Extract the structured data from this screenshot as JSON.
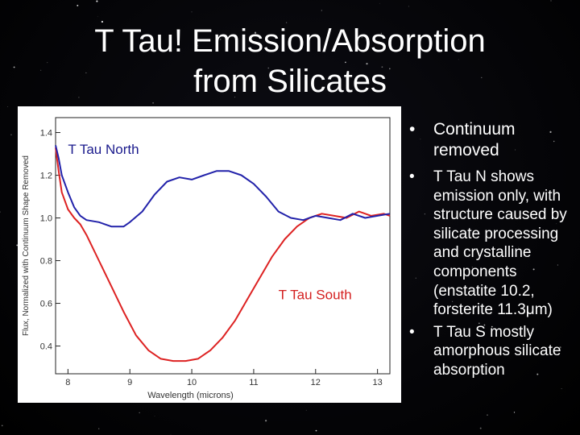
{
  "slide": {
    "title_line1": "T Tau!  Emission/Absorption",
    "title_line2": "from Silicates"
  },
  "bullets": [
    {
      "text": "Continuum removed"
    },
    {
      "text": "T Tau N shows emission only, with structure caused by silicate processing and crystalline components (enstatite 10.2, forsterite 11.3μm)"
    },
    {
      "text": "T Tau S mostly amorphous silicate absorption"
    }
  ],
  "bullet_marker": "•",
  "chart_data": {
    "type": "line",
    "title": "",
    "xlabel": "Wavelength (microns)",
    "ylabel": "Flux, Normalized with Continuum Shape Removed",
    "xlim": [
      7.8,
      13.2
    ],
    "ylim": [
      0.27,
      1.47
    ],
    "xticks": [
      8,
      9,
      10,
      11,
      12,
      13
    ],
    "yticks": [
      0.4,
      0.6,
      0.8,
      1.0,
      1.2,
      1.4
    ],
    "xtick_labels": [
      "8",
      "9",
      "10",
      "11",
      "12",
      "13"
    ],
    "ytick_labels": [
      "0.4",
      "0.6",
      "0.8",
      "1.0",
      "1.2",
      "1.4"
    ],
    "grid": false,
    "annotations": [
      {
        "text": "T Tau North",
        "x": 8.0,
        "y": 1.3,
        "color": "#1a1a8c"
      },
      {
        "text": "T Tau South",
        "x": 11.4,
        "y": 0.62,
        "color": "#d42020"
      }
    ],
    "series": [
      {
        "name": "T Tau North",
        "color": "#2222aa",
        "x": [
          7.8,
          7.85,
          7.9,
          8.0,
          8.1,
          8.2,
          8.3,
          8.5,
          8.7,
          8.9,
          9.0,
          9.2,
          9.4,
          9.6,
          9.8,
          10.0,
          10.2,
          10.4,
          10.6,
          10.8,
          11.0,
          11.2,
          11.4,
          11.6,
          11.8,
          12.0,
          12.2,
          12.4,
          12.6,
          12.8,
          13.0,
          13.2
        ],
        "y": [
          1.34,
          1.28,
          1.2,
          1.12,
          1.05,
          1.01,
          0.99,
          0.98,
          0.96,
          0.96,
          0.98,
          1.03,
          1.11,
          1.17,
          1.19,
          1.18,
          1.2,
          1.22,
          1.22,
          1.2,
          1.16,
          1.1,
          1.03,
          1.0,
          0.99,
          1.01,
          1.0,
          0.99,
          1.02,
          1.0,
          1.01,
          1.02
        ]
      },
      {
        "name": "T Tau South",
        "color": "#dd2222",
        "x": [
          7.8,
          7.85,
          7.9,
          8.0,
          8.1,
          8.2,
          8.3,
          8.5,
          8.7,
          8.9,
          9.1,
          9.3,
          9.5,
          9.7,
          9.9,
          10.1,
          10.3,
          10.5,
          10.7,
          10.9,
          11.1,
          11.3,
          11.5,
          11.7,
          11.9,
          12.1,
          12.3,
          12.5,
          12.7,
          12.9,
          13.1,
          13.2
        ],
        "y": [
          1.33,
          1.22,
          1.12,
          1.04,
          1.0,
          0.97,
          0.92,
          0.8,
          0.68,
          0.56,
          0.45,
          0.38,
          0.34,
          0.33,
          0.33,
          0.34,
          0.38,
          0.44,
          0.52,
          0.62,
          0.72,
          0.82,
          0.9,
          0.96,
          1.0,
          1.02,
          1.01,
          1.0,
          1.03,
          1.01,
          1.02,
          1.01
        ]
      }
    ]
  }
}
